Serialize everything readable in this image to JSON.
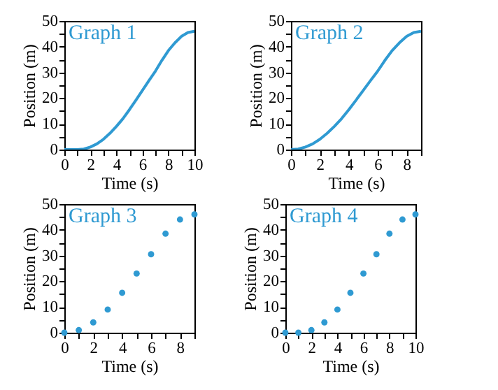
{
  "chart_data": [
    {
      "type": "line",
      "title": "Graph 1",
      "xlabel": "Time (s)",
      "ylabel": "Position (m)",
      "x": [
        0,
        0.5,
        1,
        1.5,
        2,
        2.5,
        3,
        3.5,
        4,
        4.5,
        5,
        5.5,
        6,
        6.5,
        7,
        7.5,
        8,
        8.5,
        9,
        9.5,
        10
      ],
      "series": [
        {
          "color": "#2f9ad2",
          "values": [
            0,
            0,
            0,
            0.2,
            1,
            2.2,
            4,
            6.3,
            9,
            12,
            15.5,
            19.2,
            23,
            26.8,
            30.5,
            34.7,
            38.5,
            41.5,
            44,
            45.5,
            46
          ]
        }
      ],
      "xlim": [
        0,
        10
      ],
      "ylim": [
        0,
        50
      ],
      "xticks": [
        0,
        {
          "value": 1,
          "label": null
        },
        2,
        {
          "value": 3,
          "label": null
        },
        4,
        {
          "value": 5,
          "label": null
        },
        6,
        {
          "value": 7,
          "label": null
        },
        8,
        {
          "value": 9,
          "label": null
        },
        10
      ],
      "yticks": [
        0,
        {
          "value": 5,
          "label": null
        },
        10,
        {
          "value": 15,
          "label": null
        },
        20,
        {
          "value": 25,
          "label": null
        },
        30,
        {
          "value": 35,
          "label": null
        },
        40,
        {
          "value": 45,
          "label": null
        },
        50
      ],
      "marker": "none"
    },
    {
      "type": "line",
      "title": "Graph 2",
      "xlabel": "Time (s)",
      "ylabel": "Position (m)",
      "x": [
        0,
        0.5,
        1,
        1.5,
        2,
        2.5,
        3,
        3.5,
        4,
        4.5,
        5,
        5.5,
        6,
        6.5,
        7,
        7.5,
        8,
        8.5,
        9
      ],
      "series": [
        {
          "color": "#2f9ad2",
          "values": [
            0,
            0.2,
            1,
            2.2,
            4,
            6.3,
            9,
            12,
            15.5,
            19.2,
            23,
            26.8,
            30.5,
            34.7,
            38.5,
            41.5,
            44,
            45.5,
            46
          ]
        }
      ],
      "xlim": [
        0,
        9
      ],
      "ylim": [
        0,
        50
      ],
      "xticks": [
        0,
        {
          "value": 1,
          "label": null
        },
        2,
        {
          "value": 3,
          "label": null
        },
        4,
        {
          "value": 5,
          "label": null
        },
        6,
        {
          "value": 7,
          "label": null
        },
        8,
        {
          "value": 9,
          "label": null
        }
      ],
      "yticks": [
        0,
        {
          "value": 5,
          "label": null
        },
        10,
        {
          "value": 15,
          "label": null
        },
        20,
        {
          "value": 25,
          "label": null
        },
        30,
        {
          "value": 35,
          "label": null
        },
        40,
        {
          "value": 45,
          "label": null
        },
        50
      ],
      "marker": "none"
    },
    {
      "type": "scatter",
      "title": "Graph 3",
      "xlabel": "Time (s)",
      "ylabel": "Position (m)",
      "x": [
        0,
        1,
        2,
        3,
        4,
        5,
        6,
        7,
        8,
        9
      ],
      "series": [
        {
          "color": "#2f9ad2",
          "values": [
            0,
            1,
            4,
            9,
            15.5,
            23,
            30.5,
            38.5,
            44,
            46
          ]
        }
      ],
      "xlim": [
        0,
        9
      ],
      "ylim": [
        0,
        50
      ],
      "xticks": [
        0,
        {
          "value": 1,
          "label": null
        },
        2,
        {
          "value": 3,
          "label": null
        },
        4,
        {
          "value": 5,
          "label": null
        },
        6,
        {
          "value": 7,
          "label": null
        },
        8,
        {
          "value": 9,
          "label": null
        }
      ],
      "yticks": [
        0,
        {
          "value": 5,
          "label": null
        },
        10,
        {
          "value": 15,
          "label": null
        },
        20,
        {
          "value": 25,
          "label": null
        },
        30,
        {
          "value": 35,
          "label": null
        },
        40,
        {
          "value": 45,
          "label": null
        },
        50
      ],
      "marker": "circle"
    },
    {
      "type": "scatter",
      "title": "Graph 4",
      "xlabel": "Time (s)",
      "ylabel": "Position (m)",
      "x": [
        0,
        1,
        2,
        3,
        4,
        5,
        6,
        7,
        8,
        9,
        10
      ],
      "series": [
        {
          "color": "#2f9ad2",
          "values": [
            0,
            0,
            1,
            4,
            9,
            15.5,
            23,
            30.5,
            38.5,
            44,
            46
          ]
        }
      ],
      "xlim": [
        0,
        10
      ],
      "ylim": [
        0,
        50
      ],
      "xticks": [
        0,
        {
          "value": 1,
          "label": null
        },
        2,
        {
          "value": 3,
          "label": null
        },
        4,
        {
          "value": 5,
          "label": null
        },
        6,
        {
          "value": 7,
          "label": null
        },
        8,
        {
          "value": 9,
          "label": null
        },
        10
      ],
      "yticks": [
        0,
        {
          "value": 5,
          "label": null
        },
        10,
        {
          "value": 15,
          "label": null
        },
        20,
        {
          "value": 25,
          "label": null
        },
        30,
        {
          "value": 35,
          "label": null
        },
        40,
        {
          "value": 45,
          "label": null
        },
        50
      ],
      "marker": "circle"
    }
  ]
}
